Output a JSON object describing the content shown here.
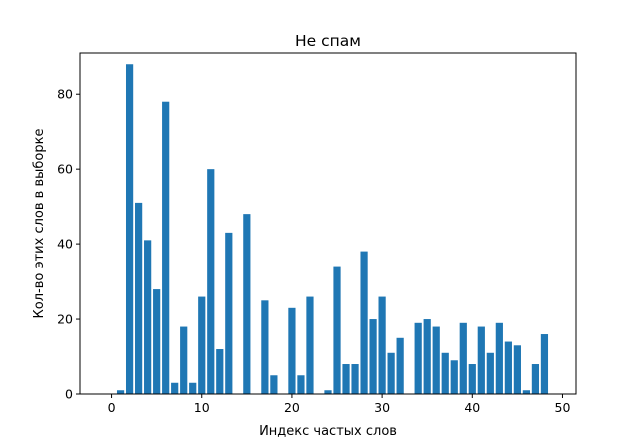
{
  "chart_data": {
    "type": "bar",
    "title": "Не спам",
    "xlabel": "Индекс частых слов",
    "ylabel": "Кол-во этих слов в выборке",
    "x": [
      1,
      2,
      3,
      4,
      5,
      6,
      7,
      8,
      9,
      10,
      11,
      12,
      13,
      15,
      17,
      18,
      20,
      21,
      22,
      24,
      25,
      26,
      27,
      28,
      29,
      30,
      31,
      32,
      34,
      35,
      36,
      37,
      38,
      39,
      40,
      41,
      42,
      43,
      44,
      45,
      46,
      47,
      48
    ],
    "values": [
      1,
      88,
      51,
      41,
      28,
      78,
      3,
      18,
      3,
      26,
      60,
      12,
      43,
      48,
      25,
      5,
      23,
      5,
      26,
      1,
      34,
      8,
      8,
      38,
      20,
      26,
      11,
      15,
      19,
      20,
      18,
      11,
      9,
      19,
      8,
      18,
      11,
      19,
      14,
      13,
      1,
      8,
      16
    ],
    "xlim": [
      -3.5,
      51.5
    ],
    "ylim": [
      0,
      91
    ],
    "xticks": [
      0,
      10,
      20,
      30,
      40,
      50
    ],
    "yticks": [
      0,
      20,
      40,
      60,
      80
    ],
    "bar_color": "#1f77b4",
    "grid": false,
    "legend": "none"
  }
}
